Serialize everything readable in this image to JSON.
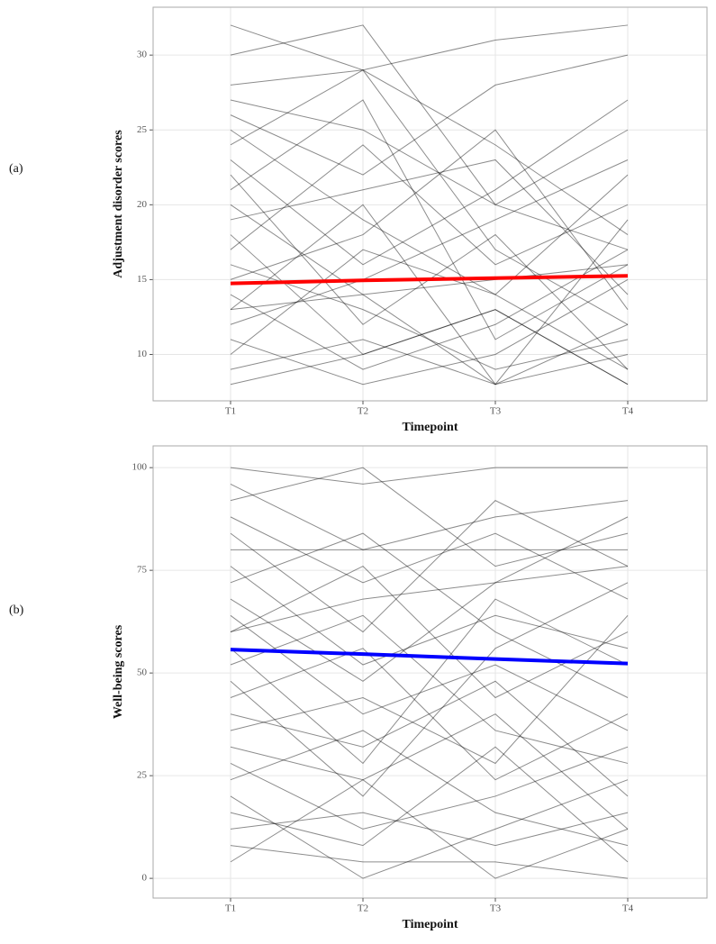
{
  "chart_data": [
    {
      "type": "line",
      "panel_label": "(a)",
      "y_label": "Adjustment disorder scores",
      "x_label": "Timepoint",
      "categories": [
        "T1",
        "T2",
        "T3",
        "T4"
      ],
      "ylim": [
        6.9,
        33.2
      ],
      "yticks": [
        10,
        15,
        20,
        25,
        30
      ],
      "grid": true,
      "line_color": "#000000",
      "series": [
        {
          "values": [
            32,
            29,
            31,
            32
          ]
        },
        {
          "values": [
            30,
            32,
            20,
            25
          ]
        },
        {
          "values": [
            28,
            29,
            24,
            18
          ]
        },
        {
          "values": [
            26,
            22,
            28,
            30
          ]
        },
        {
          "values": [
            25,
            19,
            14,
            22
          ]
        },
        {
          "values": [
            24,
            29,
            17,
            12
          ]
        },
        {
          "values": [
            23,
            16,
            21,
            27
          ]
        },
        {
          "values": [
            22,
            12,
            18,
            9
          ]
        },
        {
          "values": [
            21,
            27,
            11,
            16
          ]
        },
        {
          "values": [
            20,
            14,
            8,
            19
          ]
        },
        {
          "values": [
            19,
            21,
            23,
            14
          ]
        },
        {
          "values": [
            18,
            10,
            13,
            8
          ]
        },
        {
          "values": [
            17,
            24,
            16,
            20
          ]
        },
        {
          "values": [
            16,
            13,
            9,
            11
          ]
        },
        {
          "values": [
            15,
            18,
            25,
            13
          ]
        },
        {
          "values": [
            14,
            9,
            12,
            17
          ]
        },
        {
          "values": [
            13,
            20,
            8,
            10
          ]
        },
        {
          "values": [
            12,
            15,
            19,
            23
          ]
        },
        {
          "values": [
            11,
            8,
            10,
            15
          ]
        },
        {
          "values": [
            10,
            17,
            14,
            9
          ]
        },
        {
          "values": [
            9,
            11,
            8,
            12
          ]
        },
        {
          "values": [
            8,
            10,
            13,
            8
          ]
        },
        {
          "values": [
            27,
            25,
            20,
            17
          ]
        },
        {
          "values": [
            13,
            14,
            15,
            16
          ]
        }
      ],
      "trend": {
        "color": "#ff0000",
        "values": [
          14.75,
          14.95,
          15.1,
          15.25
        ]
      }
    },
    {
      "type": "line",
      "panel_label": "(b)",
      "y_label": "Well-being scores",
      "x_label": "Timepoint",
      "categories": [
        "T1",
        "T2",
        "T3",
        "T4"
      ],
      "ylim": [
        -4.8,
        105.3
      ],
      "yticks": [
        0,
        25,
        50,
        75,
        100
      ],
      "grid": true,
      "line_color": "#000000",
      "series": [
        {
          "values": [
            100,
            96,
            100,
            100
          ]
        },
        {
          "values": [
            96,
            80,
            88,
            92
          ]
        },
        {
          "values": [
            92,
            100,
            76,
            84
          ]
        },
        {
          "values": [
            88,
            72,
            84,
            68
          ]
        },
        {
          "values": [
            84,
            60,
            92,
            76
          ]
        },
        {
          "values": [
            80,
            80,
            80,
            80
          ]
        },
        {
          "values": [
            76,
            52,
            64,
            56
          ]
        },
        {
          "values": [
            72,
            84,
            60,
            44
          ]
        },
        {
          "values": [
            68,
            48,
            72,
            88
          ]
        },
        {
          "values": [
            64,
            40,
            52,
            36
          ]
        },
        {
          "values": [
            60,
            76,
            44,
            60
          ]
        },
        {
          "values": [
            56,
            28,
            68,
            52
          ]
        },
        {
          "values": [
            52,
            64,
            36,
            28
          ]
        },
        {
          "values": [
            48,
            20,
            56,
            72
          ]
        },
        {
          "values": [
            44,
            56,
            24,
            40
          ]
        },
        {
          "values": [
            40,
            32,
            48,
            20
          ]
        },
        {
          "values": [
            36,
            44,
            28,
            64
          ]
        },
        {
          "values": [
            32,
            24,
            40,
            12
          ]
        },
        {
          "values": [
            28,
            12,
            20,
            32
          ]
        },
        {
          "values": [
            24,
            36,
            16,
            8
          ]
        },
        {
          "values": [
            20,
            0,
            12,
            24
          ]
        },
        {
          "values": [
            16,
            8,
            32,
            4
          ]
        },
        {
          "values": [
            12,
            16,
            8,
            16
          ]
        },
        {
          "values": [
            8,
            4,
            4,
            0
          ]
        },
        {
          "values": [
            4,
            24,
            0,
            12
          ]
        },
        {
          "values": [
            60,
            68,
            72,
            76
          ]
        }
      ],
      "trend": {
        "color": "#0000ff",
        "values": [
          55.7,
          54.6,
          53.4,
          52.3
        ]
      }
    }
  ]
}
